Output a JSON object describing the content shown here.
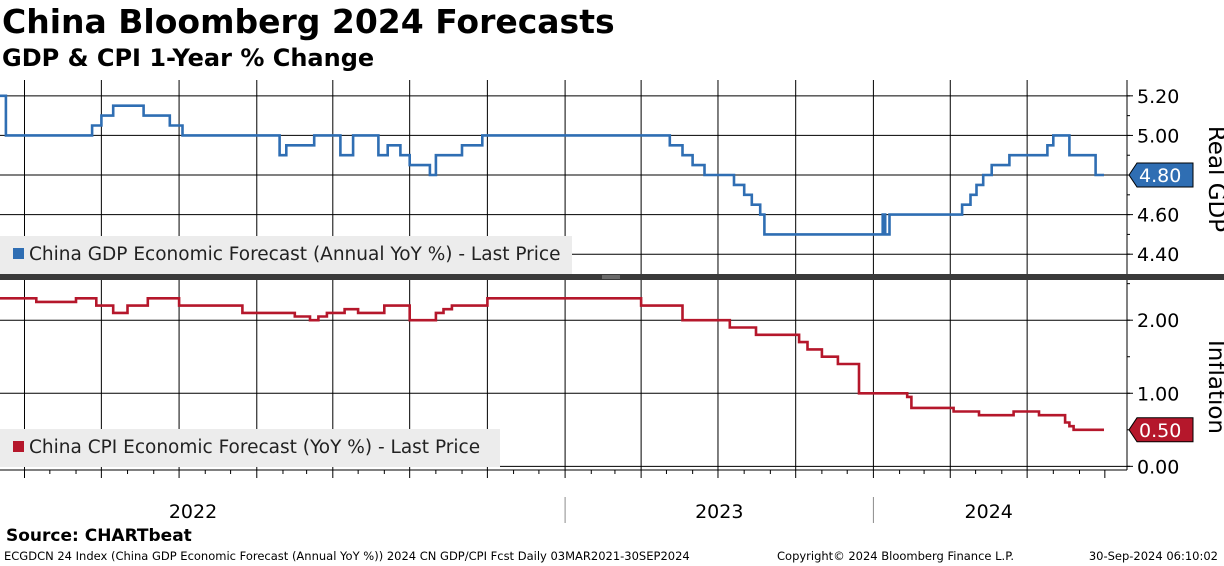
{
  "header": {
    "title": "China Bloomberg 2024 Forecasts",
    "subtitle": "GDP & CPI 1-Year % Change"
  },
  "source": "Source: CHARTbeat",
  "footer": {
    "left": "ECGDCN 24 Index (China GDP Economic Forecast (Annual YoY %)) 2024 CN GDP/CPI Fcst  Daily 03MAR2021-30SEP2024",
    "middle": "Copyright© 2024 Bloomberg Finance L.P.",
    "right": "30-Sep-2024 06:10:02"
  },
  "colors": {
    "gdp": "#2f6eb3",
    "cpi": "#b5172b",
    "grid": "#000000",
    "legend_bg": "#ececec",
    "divider": "#3a3a3a"
  },
  "chart_data": [
    {
      "type": "line",
      "panel": "top",
      "axis_title": "Real GDP",
      "ylim": [
        4.3,
        5.28
      ],
      "yticks": [
        4.4,
        4.6,
        4.8,
        5.0,
        5.2
      ],
      "ytick_labels": [
        "4.40",
        "4.60",
        "4.80",
        "5.00",
        "5.20"
      ],
      "grid": true,
      "legend": "bottom-left",
      "last_value_label": "4.80",
      "series": [
        {
          "name": "China GDP Economic Forecast (Annual YoY %) - Last Price",
          "step": true,
          "x": [
            "2021-03-03",
            "2021-03-10",
            "2021-05-15",
            "2021-06-20",
            "2021-07-01",
            "2021-07-12",
            "2021-07-15",
            "2021-07-22",
            "2021-08-05",
            "2021-08-20",
            "2021-09-10",
            "2021-09-20",
            "2021-10-05",
            "2021-11-25",
            "2021-12-02",
            "2022-01-20",
            "2022-01-28",
            "2022-02-05",
            "2022-02-20",
            "2022-03-10",
            "2022-03-25",
            "2022-04-10",
            "2022-04-25",
            "2022-05-10",
            "2022-05-25",
            "2022-06-05",
            "2022-06-20",
            "2022-07-01",
            "2022-07-15",
            "2022-07-25",
            "2022-08-01",
            "2022-08-20",
            "2022-09-01",
            "2022-09-25",
            "2022-10-10",
            "2022-11-20",
            "2022-12-20",
            "2023-04-20",
            "2023-05-05",
            "2023-05-20",
            "2023-06-01",
            "2023-06-15",
            "2023-07-15",
            "2023-07-20",
            "2023-07-25",
            "2023-08-01",
            "2023-08-10",
            "2023-08-20",
            "2023-08-25",
            "2023-09-15",
            "2023-09-25",
            "2023-10-05",
            "2023-11-15",
            "2024-01-05",
            "2024-01-12",
            "2024-01-15",
            "2024-01-20",
            "2024-04-05",
            "2024-04-15",
            "2024-04-25",
            "2024-05-02",
            "2024-05-10",
            "2024-05-20",
            "2024-06-10",
            "2024-07-15",
            "2024-07-25",
            "2024-08-01",
            "2024-08-10",
            "2024-08-20",
            "2024-09-15",
            "2024-09-20",
            "2024-09-30"
          ],
          "values": [
            5.2,
            5.0,
            5.0,
            5.05,
            5.1,
            5.1,
            5.15,
            5.15,
            5.15,
            5.1,
            5.1,
            5.05,
            5.0,
            5.0,
            5.0,
            5.0,
            4.9,
            4.95,
            4.95,
            5.0,
            5.0,
            4.9,
            5.0,
            5.0,
            4.9,
            4.95,
            4.9,
            4.85,
            4.85,
            4.8,
            4.9,
            4.9,
            4.95,
            5.0,
            5.0,
            5.0,
            5.0,
            5.0,
            4.95,
            4.9,
            4.85,
            4.8,
            4.8,
            4.75,
            4.75,
            4.7,
            4.65,
            4.6,
            4.5,
            4.5,
            4.5,
            4.5,
            4.5,
            4.5,
            4.6,
            4.5,
            4.6,
            4.6,
            4.65,
            4.7,
            4.75,
            4.8,
            4.85,
            4.9,
            4.9,
            4.95,
            5.0,
            5.0,
            4.9,
            4.9,
            4.8,
            4.8
          ]
        }
      ]
    },
    {
      "type": "line",
      "panel": "bottom",
      "axis_title": "Inflation",
      "ylim": [
        -0.05,
        2.55
      ],
      "yticks": [
        0.0,
        1.0,
        2.0
      ],
      "ytick_labels": [
        "0.00",
        "1.00",
        "2.00"
      ],
      "grid": true,
      "legend": "bottom-left",
      "last_value_label": "0.50",
      "series": [
        {
          "name": "China CPI Economic Forecast (YoY %) - Last Price",
          "step": true,
          "x": [
            "2021-03-03",
            "2021-04-15",
            "2021-05-01",
            "2021-06-01",
            "2021-06-25",
            "2021-07-15",
            "2021-08-01",
            "2021-08-25",
            "2021-09-10",
            "2021-10-01",
            "2021-11-15",
            "2021-12-15",
            "2022-01-01",
            "2022-02-15",
            "2022-03-05",
            "2022-03-15",
            "2022-03-25",
            "2022-04-15",
            "2022-05-01",
            "2022-06-01",
            "2022-07-01",
            "2022-08-01",
            "2022-08-10",
            "2022-08-20",
            "2022-09-01",
            "2022-10-01",
            "2022-12-01",
            "2023-01-01",
            "2023-04-01",
            "2023-05-01",
            "2023-05-20",
            "2023-06-05",
            "2023-07-15",
            "2023-08-15",
            "2023-09-15",
            "2023-10-05",
            "2023-10-15",
            "2023-11-01",
            "2023-11-20",
            "2023-12-01",
            "2023-12-15",
            "2024-01-10",
            "2024-02-10",
            "2024-02-15",
            "2024-03-15",
            "2024-04-05",
            "2024-05-05",
            "2024-06-01",
            "2024-06-15",
            "2024-07-15",
            "2024-08-15",
            "2024-08-20",
            "2024-08-25",
            "2024-09-30"
          ],
          "values": [
            2.3,
            2.25,
            2.25,
            2.3,
            2.2,
            2.1,
            2.2,
            2.3,
            2.3,
            2.2,
            2.2,
            2.1,
            2.1,
            2.05,
            2.0,
            2.05,
            2.1,
            2.15,
            2.1,
            2.2,
            2.0,
            2.1,
            2.15,
            2.2,
            2.2,
            2.3,
            2.3,
            2.3,
            2.2,
            2.2,
            2.0,
            2.0,
            1.9,
            1.8,
            1.8,
            1.7,
            1.6,
            1.5,
            1.4,
            1.4,
            1.0,
            1.0,
            0.95,
            0.8,
            0.8,
            0.75,
            0.7,
            0.7,
            0.75,
            0.7,
            0.6,
            0.55,
            0.5,
            0.5
          ]
        }
      ]
    }
  ],
  "x_axis": {
    "year_labels": [
      "2022",
      "2023",
      "2024"
    ],
    "year_boundaries": [
      "2022-01-01",
      "2023-01-01",
      "2024-01-01",
      "2025-01-01"
    ]
  }
}
